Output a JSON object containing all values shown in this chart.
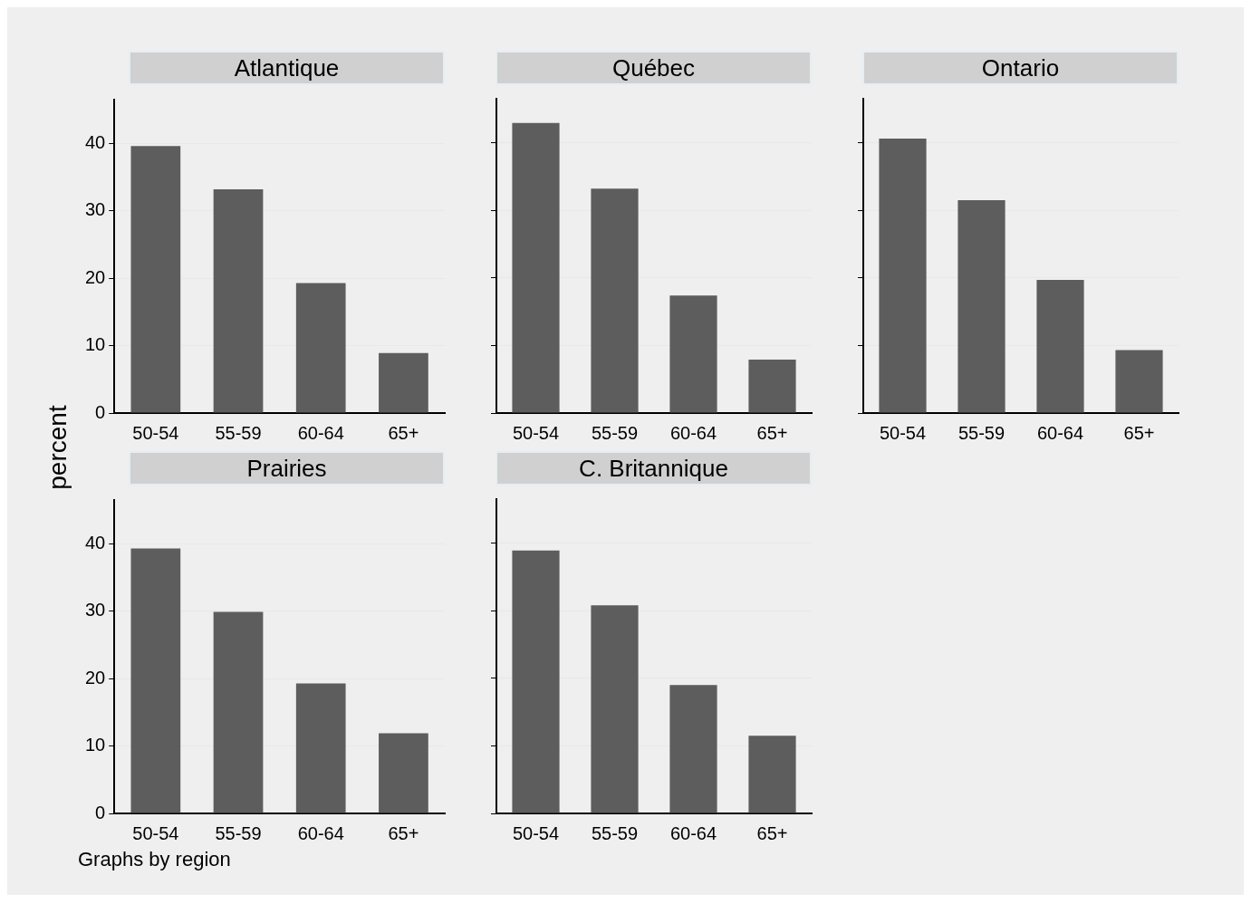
{
  "chart_data": [
    {
      "type": "bar",
      "title": "Atlantique",
      "ylabel": "percent",
      "categories": [
        "50-54",
        "55-59",
        "60-64",
        "65+"
      ],
      "values": [
        39.6,
        33.2,
        19.3,
        8.9
      ],
      "color": "#5d5d5d",
      "ylim": [
        0,
        46.5
      ],
      "yticks": [
        0,
        10,
        20,
        30,
        40
      ],
      "grid": "y"
    },
    {
      "type": "bar",
      "title": "Québec",
      "categories": [
        "50-54",
        "55-59",
        "60-64",
        "65+"
      ],
      "values": [
        42.9,
        33.2,
        17.4,
        7.9
      ],
      "color": "#5d5d5d",
      "ylim": [
        0,
        46.5
      ],
      "yticks": [
        0,
        10,
        20,
        30,
        40
      ],
      "grid": "y",
      "tick_labels": "x"
    },
    {
      "type": "bar",
      "title": "Ontario",
      "categories": [
        "50-54",
        "55-59",
        "60-64",
        "65+"
      ],
      "values": [
        40.6,
        31.5,
        19.7,
        9.3
      ],
      "color": "#5d5d5d",
      "ylim": [
        0,
        46.5
      ],
      "yticks": [
        0,
        10,
        20,
        30,
        40
      ],
      "grid": "y",
      "tick_labels": "x"
    },
    {
      "type": "bar",
      "title": "Prairies",
      "categories": [
        "50-54",
        "55-59",
        "60-64",
        "65+"
      ],
      "values": [
        39.3,
        29.9,
        19.3,
        11.9
      ],
      "color": "#5d5d5d",
      "ylim": [
        0,
        46.5
      ],
      "yticks": [
        0,
        10,
        20,
        30,
        40
      ],
      "grid": "y"
    },
    {
      "type": "bar",
      "title": "C. Britannique",
      "categories": [
        "50-54",
        "55-59",
        "60-64",
        "65+"
      ],
      "values": [
        38.9,
        30.8,
        19.0,
        11.5
      ],
      "color": "#5d5d5d",
      "ylim": [
        0,
        46.5
      ],
      "yticks": [
        0,
        10,
        20,
        30,
        40
      ],
      "grid": "y",
      "tick_labels": "x",
      "annotations": [
        "Graphs by region"
      ]
    }
  ]
}
